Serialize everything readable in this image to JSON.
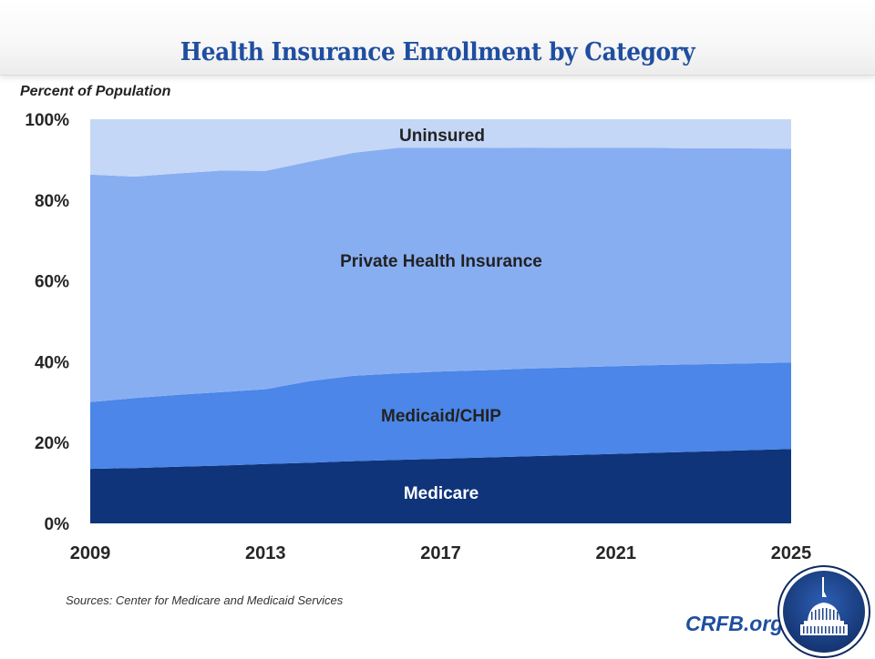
{
  "header": {
    "title": "Health Insurance Enrollment by Category"
  },
  "source": "Sources: Center for Medicare and Medicaid Services",
  "brand": {
    "site": "CRFB.org",
    "logo": "capitol-dome-seal"
  },
  "colors": {
    "title": "#1f4ea0",
    "medicare": "#0f347a",
    "medicaid": "#4b86e8",
    "private": "#88aef2",
    "uninsured": "#c5d7f6"
  },
  "chart_data": {
    "type": "area",
    "stacked": true,
    "title": "Health Insurance Enrollment by Category",
    "ylabel": "Percent of Population",
    "xlabel": "",
    "ylim": [
      0,
      100
    ],
    "xlim": [
      2009,
      2025
    ],
    "yticks": [
      0,
      20,
      40,
      60,
      80,
      100
    ],
    "ytick_labels": [
      "0%",
      "20%",
      "40%",
      "60%",
      "80%",
      "100%"
    ],
    "xticks": [
      2009,
      2013,
      2017,
      2021,
      2025
    ],
    "xtick_labels": [
      "2009",
      "2013",
      "2017",
      "2021",
      "2025"
    ],
    "grid": false,
    "legend": "none (labels inside areas)",
    "x": [
      2009,
      2010,
      2011,
      2012,
      2013,
      2014,
      2015,
      2016,
      2017,
      2018,
      2019,
      2020,
      2021,
      2022,
      2023,
      2024,
      2025
    ],
    "series": [
      {
        "name": "Medicare",
        "key": "medicare",
        "values": [
          13.5,
          13.7,
          14.0,
          14.3,
          14.7,
          15.0,
          15.4,
          15.7,
          16.0,
          16.3,
          16.6,
          16.9,
          17.2,
          17.5,
          17.8,
          18.1,
          18.4
        ]
      },
      {
        "name": "Medicaid/CHIP",
        "key": "medicaid",
        "values": [
          16.5,
          17.3,
          17.8,
          18.2,
          18.5,
          20.2,
          21.1,
          21.4,
          21.6,
          21.6,
          21.7,
          21.7,
          21.7,
          21.7,
          21.6,
          21.5,
          21.4
        ]
      },
      {
        "name": "Private Health Insurance",
        "key": "private",
        "values": [
          56.3,
          54.8,
          54.8,
          54.8,
          54.0,
          54.3,
          55.2,
          55.8,
          55.3,
          55.0,
          54.7,
          54.3,
          54.0,
          53.7,
          53.4,
          53.2,
          52.9
        ]
      },
      {
        "name": "Uninsured",
        "key": "uninsured",
        "values": [
          13.7,
          14.2,
          13.4,
          12.7,
          12.8,
          10.5,
          8.3,
          7.1,
          7.1,
          7.1,
          7.0,
          7.1,
          7.1,
          7.1,
          7.2,
          7.2,
          7.3
        ]
      }
    ]
  }
}
